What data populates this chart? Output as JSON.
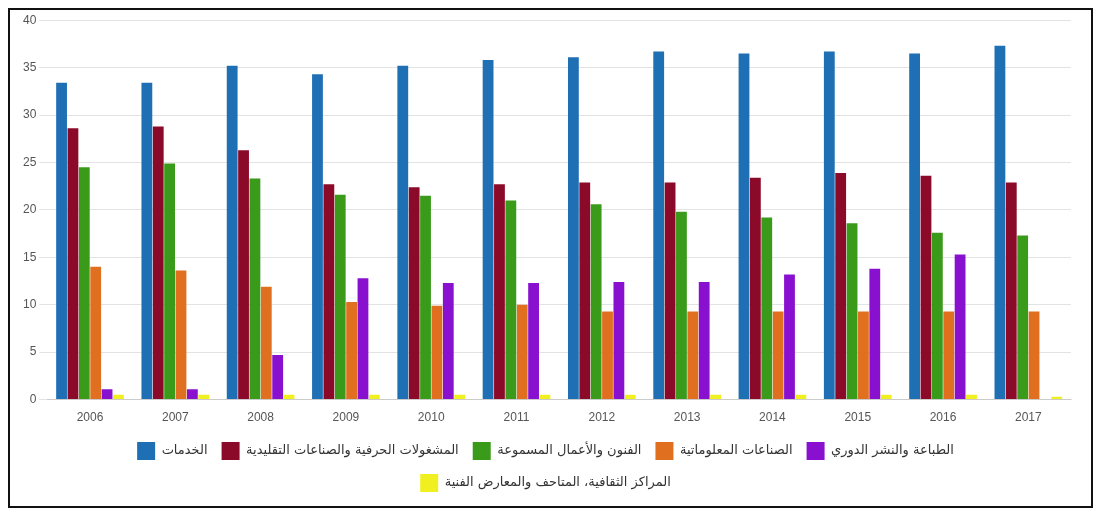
{
  "chart_data": {
    "type": "bar",
    "categories": [
      "2006",
      "2007",
      "2008",
      "2009",
      "2010",
      "2011",
      "2012",
      "2013",
      "2014",
      "2015",
      "2016",
      "2017"
    ],
    "series": [
      {
        "name": "الخدمات",
        "color": "#1f6fb4",
        "values": [
          33.4,
          33.4,
          35.2,
          34.3,
          35.2,
          35.8,
          36.1,
          36.7,
          36.5,
          36.7,
          36.5,
          37.3
        ]
      },
      {
        "name": "المشغولات الحرفية والصناعات التقليدية",
        "color": "#8b0a2a",
        "values": [
          28.6,
          28.8,
          26.3,
          22.7,
          22.4,
          22.7,
          22.9,
          22.9,
          23.4,
          23.9,
          23.6,
          22.9
        ]
      },
      {
        "name": "الفنون والأعمال المسموعة",
        "color": "#3a9a1a",
        "values": [
          24.5,
          24.9,
          23.3,
          21.6,
          21.5,
          21.0,
          20.6,
          19.8,
          19.2,
          18.6,
          17.6,
          17.3
        ]
      },
      {
        "name": "الصناعات المعلوماتية",
        "color": "#e07020",
        "values": [
          14.0,
          13.6,
          11.9,
          10.3,
          9.9,
          10.0,
          9.3,
          9.3,
          9.3,
          9.3,
          9.3,
          9.3
        ]
      },
      {
        "name": "الطباعة والنشر الدوري",
        "color": "#8a10d0",
        "values": [
          1.1,
          1.1,
          4.7,
          12.8,
          12.3,
          12.3,
          12.4,
          12.4,
          13.2,
          13.8,
          15.3,
          0
        ]
      },
      {
        "name": "المراكز الثقافية، المتاحف والمعارض الفنية",
        "color": "#f0f020",
        "values": [
          0.5,
          0.5,
          0.5,
          0.5,
          0.5,
          0.5,
          0.5,
          0.5,
          0.5,
          0.5,
          0.5,
          0.3
        ]
      }
    ],
    "ylim": [
      0,
      40
    ],
    "yticks": [
      0,
      5,
      10,
      15,
      20,
      25,
      30,
      35,
      40
    ],
    "grid": "y",
    "legend": "bottom"
  }
}
